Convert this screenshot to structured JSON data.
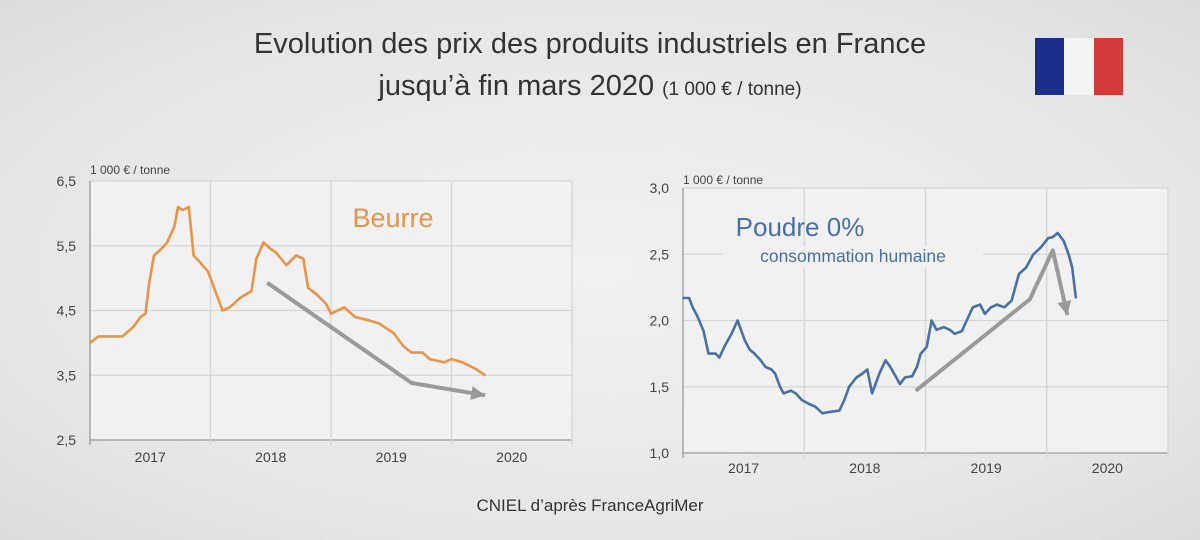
{
  "title": {
    "line1": "Evolution des prix des produits industriels en France",
    "line2": "jusqu’à fin mars 2020",
    "unit": "(1 000 € / tonne)"
  },
  "flag": {
    "icon": "france-flag-icon",
    "colors": [
      "#1c2f8a",
      "#ffffff",
      "#d33b3b"
    ]
  },
  "footer": "CNIEL d’après  FranceAgriMer",
  "chart_data": [
    {
      "type": "line",
      "title": "Beurre",
      "ylabel": "1 000 €  / tonne",
      "ylim": [
        2.5,
        6.5
      ],
      "yticks": [
        "2,5",
        "3,5",
        "4,5",
        "5,5",
        "6,5"
      ],
      "ytick_values": [
        2.5,
        3.5,
        4.5,
        5.5,
        6.5
      ],
      "xlim": [
        2017,
        2021
      ],
      "xticks": [
        "2017",
        "2018",
        "2019",
        "2020"
      ],
      "grid": true,
      "color": "#e8944a",
      "x": [
        2017.0,
        2017.07,
        2017.18,
        2017.27,
        2017.36,
        2017.42,
        2017.46,
        2017.49,
        2017.53,
        2017.59,
        2017.64,
        2017.7,
        2017.73,
        2017.77,
        2017.82,
        2017.86,
        2017.91,
        2017.98,
        2018.04,
        2018.1,
        2018.16,
        2018.25,
        2018.34,
        2018.38,
        2018.44,
        2018.5,
        2018.54,
        2018.63,
        2018.71,
        2018.77,
        2018.81,
        2018.88,
        2018.96,
        2019.0,
        2019.11,
        2019.2,
        2019.31,
        2019.4,
        2019.52,
        2019.6,
        2019.67,
        2019.76,
        2019.82,
        2019.94,
        2020.0,
        2020.09,
        2020.2,
        2020.28
      ],
      "y": [
        4.0,
        4.1,
        4.1,
        4.1,
        4.25,
        4.4,
        4.45,
        4.9,
        5.35,
        5.45,
        5.55,
        5.8,
        6.1,
        6.05,
        6.1,
        5.35,
        5.25,
        5.1,
        4.8,
        4.5,
        4.55,
        4.7,
        4.8,
        5.3,
        5.55,
        5.45,
        5.4,
        5.2,
        5.35,
        5.3,
        4.85,
        4.75,
        4.6,
        4.45,
        4.55,
        4.4,
        4.35,
        4.3,
        4.15,
        3.95,
        3.85,
        3.85,
        3.75,
        3.7,
        3.75,
        3.7,
        3.6,
        3.5
      ],
      "trend_arrow": {
        "x": [
          2018.47,
          2019.67,
          2020.28
        ],
        "y": [
          4.93,
          3.38,
          3.19
        ],
        "color": "#9a9a9a"
      }
    },
    {
      "type": "line",
      "title": "Poudre 0%",
      "subtitle": "consommation humaine",
      "ylabel": "1 000 €  / tonne",
      "ylim": [
        1.0,
        3.0
      ],
      "yticks": [
        "1,0",
        "1,5",
        "2,0",
        "2,5",
        "3,0"
      ],
      "ytick_values": [
        1.0,
        1.5,
        2.0,
        2.5,
        3.0
      ],
      "xlim": [
        2017,
        2021
      ],
      "xticks": [
        "2017",
        "2018",
        "2019",
        "2020"
      ],
      "grid": true,
      "color": "#4a6fa5",
      "x": [
        2017.0,
        2017.05,
        2017.08,
        2017.12,
        2017.17,
        2017.21,
        2017.27,
        2017.3,
        2017.34,
        2017.4,
        2017.45,
        2017.51,
        2017.55,
        2017.59,
        2017.64,
        2017.68,
        2017.73,
        2017.76,
        2017.8,
        2017.83,
        2017.89,
        2017.93,
        2017.98,
        2018.04,
        2018.09,
        2018.15,
        2018.21,
        2018.29,
        2018.33,
        2018.37,
        2018.43,
        2018.48,
        2018.52,
        2018.56,
        2018.62,
        2018.67,
        2018.71,
        2018.74,
        2018.79,
        2018.83,
        2018.89,
        2018.93,
        2018.96,
        2019.01,
        2019.05,
        2019.09,
        2019.15,
        2019.2,
        2019.24,
        2019.3,
        2019.34,
        2019.39,
        2019.45,
        2019.49,
        2019.54,
        2019.59,
        2019.65,
        2019.71,
        2019.77,
        2019.83,
        2019.89,
        2019.95,
        2020.01,
        2020.05,
        2020.09,
        2020.14,
        2020.18,
        2020.21,
        2020.24
      ],
      "y": [
        2.17,
        2.17,
        2.1,
        2.03,
        1.92,
        1.75,
        1.75,
        1.72,
        1.8,
        1.9,
        2.0,
        1.85,
        1.78,
        1.75,
        1.7,
        1.65,
        1.63,
        1.6,
        1.5,
        1.45,
        1.47,
        1.45,
        1.4,
        1.37,
        1.35,
        1.3,
        1.31,
        1.32,
        1.4,
        1.5,
        1.57,
        1.6,
        1.63,
        1.45,
        1.6,
        1.7,
        1.65,
        1.6,
        1.52,
        1.57,
        1.58,
        1.65,
        1.75,
        1.8,
        2.0,
        1.93,
        1.95,
        1.93,
        1.9,
        1.92,
        2.0,
        2.1,
        2.12,
        2.05,
        2.1,
        2.12,
        2.1,
        2.15,
        2.35,
        2.4,
        2.5,
        2.55,
        2.62,
        2.63,
        2.66,
        2.6,
        2.5,
        2.4,
        2.17
      ],
      "trend_arrow": {
        "x": [
          2018.92,
          2019.86,
          2020.05,
          2020.17
        ],
        "y": [
          1.47,
          2.16,
          2.53,
          2.04
        ],
        "color": "#9a9a9a"
      }
    }
  ]
}
